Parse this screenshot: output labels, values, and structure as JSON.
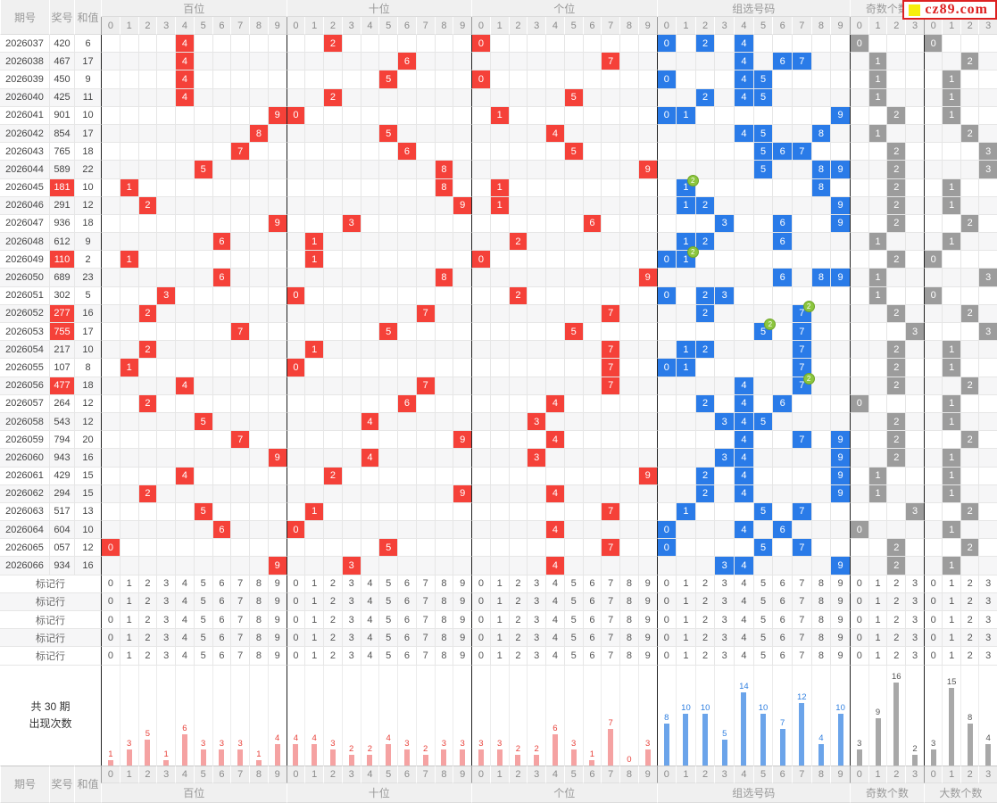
{
  "logo": {
    "text": "cz89.com",
    "accent": "#dd2121",
    "square_color": "#f7ef0c"
  },
  "badge_label": "2",
  "header": {
    "issue": "期号",
    "prize": "奖号",
    "sum": "和值",
    "sections": [
      {
        "key": "hundreds",
        "label": "百位",
        "cells": 10
      },
      {
        "key": "tens",
        "label": "十位",
        "cells": 10
      },
      {
        "key": "units",
        "label": "个位",
        "cells": 10
      },
      {
        "key": "group",
        "label": "组选号码",
        "cells": 10
      },
      {
        "key": "odd",
        "label": "奇数个数",
        "cells": 4
      },
      {
        "key": "big",
        "label": "大数个数",
        "cells": 4
      }
    ]
  },
  "colors": {
    "red_cell": "#f54139",
    "blue_cell": "#2a7be8",
    "gray_cell": "#9c9c9c",
    "bar_red": "#f5a2a2",
    "bar_red_label": "#e8423b",
    "bar_blue": "#6ba4ea",
    "bar_blue_label": "#2f7fe0",
    "bar_gray": "#a8a8a8",
    "bar_gray_label": "#555555",
    "badge_green": "#8cc63e"
  },
  "rows": [
    {
      "issue": "2026037",
      "prize": "420",
      "sum": "6",
      "special": false,
      "hundreds": 4,
      "tens": 2,
      "units": 0,
      "group": [
        0,
        2,
        4
      ],
      "double": null,
      "odd": 0,
      "big": 0
    },
    {
      "issue": "2026038",
      "prize": "467",
      "sum": "17",
      "special": false,
      "hundreds": 4,
      "tens": 6,
      "units": 7,
      "group": [
        4,
        6,
        7
      ],
      "double": null,
      "odd": 1,
      "big": 2
    },
    {
      "issue": "2026039",
      "prize": "450",
      "sum": "9",
      "special": false,
      "hundreds": 4,
      "tens": 5,
      "units": 0,
      "group": [
        0,
        4,
        5
      ],
      "double": null,
      "odd": 1,
      "big": 1
    },
    {
      "issue": "2026040",
      "prize": "425",
      "sum": "11",
      "special": false,
      "hundreds": 4,
      "tens": 2,
      "units": 5,
      "group": [
        2,
        4,
        5
      ],
      "double": null,
      "odd": 1,
      "big": 1
    },
    {
      "issue": "2026041",
      "prize": "901",
      "sum": "10",
      "special": false,
      "hundreds": 9,
      "tens": 0,
      "units": 1,
      "group": [
        0,
        1,
        9
      ],
      "double": null,
      "odd": 2,
      "big": 1
    },
    {
      "issue": "2026042",
      "prize": "854",
      "sum": "17",
      "special": false,
      "hundreds": 8,
      "tens": 5,
      "units": 4,
      "group": [
        4,
        5,
        8
      ],
      "double": null,
      "odd": 1,
      "big": 2
    },
    {
      "issue": "2026043",
      "prize": "765",
      "sum": "18",
      "special": false,
      "hundreds": 7,
      "tens": 6,
      "units": 5,
      "group": [
        5,
        6,
        7
      ],
      "double": null,
      "odd": 2,
      "big": 3
    },
    {
      "issue": "2026044",
      "prize": "589",
      "sum": "22",
      "special": false,
      "hundreds": 5,
      "tens": 8,
      "units": 9,
      "group": [
        5,
        8,
        9
      ],
      "double": null,
      "odd": 2,
      "big": 3
    },
    {
      "issue": "2026045",
      "prize": "181",
      "sum": "10",
      "special": true,
      "hundreds": 1,
      "tens": 8,
      "units": 1,
      "group": [
        1,
        8
      ],
      "double": 1,
      "odd": 2,
      "big": 1
    },
    {
      "issue": "2026046",
      "prize": "291",
      "sum": "12",
      "special": false,
      "hundreds": 2,
      "tens": 9,
      "units": 1,
      "group": [
        1,
        2,
        9
      ],
      "double": null,
      "odd": 2,
      "big": 1
    },
    {
      "issue": "2026047",
      "prize": "936",
      "sum": "18",
      "special": false,
      "hundreds": 9,
      "tens": 3,
      "units": 6,
      "group": [
        3,
        6,
        9
      ],
      "double": null,
      "odd": 2,
      "big": 2
    },
    {
      "issue": "2026048",
      "prize": "612",
      "sum": "9",
      "special": false,
      "hundreds": 6,
      "tens": 1,
      "units": 2,
      "group": [
        1,
        2,
        6
      ],
      "double": null,
      "odd": 1,
      "big": 1
    },
    {
      "issue": "2026049",
      "prize": "110",
      "sum": "2",
      "special": true,
      "hundreds": 1,
      "tens": 1,
      "units": 0,
      "group": [
        0,
        1
      ],
      "double": 1,
      "odd": 2,
      "big": 0
    },
    {
      "issue": "2026050",
      "prize": "689",
      "sum": "23",
      "special": false,
      "hundreds": 6,
      "tens": 8,
      "units": 9,
      "group": [
        6,
        8,
        9
      ],
      "double": null,
      "odd": 1,
      "big": 3
    },
    {
      "issue": "2026051",
      "prize": "302",
      "sum": "5",
      "special": false,
      "hundreds": 3,
      "tens": 0,
      "units": 2,
      "group": [
        0,
        2,
        3
      ],
      "double": null,
      "odd": 1,
      "big": 0
    },
    {
      "issue": "2026052",
      "prize": "277",
      "sum": "16",
      "special": true,
      "hundreds": 2,
      "tens": 7,
      "units": 7,
      "group": [
        2,
        7
      ],
      "double": 7,
      "odd": 2,
      "big": 2
    },
    {
      "issue": "2026053",
      "prize": "755",
      "sum": "17",
      "special": true,
      "hundreds": 7,
      "tens": 5,
      "units": 5,
      "group": [
        5,
        7
      ],
      "double": 5,
      "odd": 3,
      "big": 3
    },
    {
      "issue": "2026054",
      "prize": "217",
      "sum": "10",
      "special": false,
      "hundreds": 2,
      "tens": 1,
      "units": 7,
      "group": [
        1,
        2,
        7
      ],
      "double": null,
      "odd": 2,
      "big": 1
    },
    {
      "issue": "2026055",
      "prize": "107",
      "sum": "8",
      "special": false,
      "hundreds": 1,
      "tens": 0,
      "units": 7,
      "group": [
        0,
        1,
        7
      ],
      "double": null,
      "odd": 2,
      "big": 1
    },
    {
      "issue": "2026056",
      "prize": "477",
      "sum": "18",
      "special": true,
      "hundreds": 4,
      "tens": 7,
      "units": 7,
      "group": [
        4,
        7
      ],
      "double": 7,
      "odd": 2,
      "big": 2
    },
    {
      "issue": "2026057",
      "prize": "264",
      "sum": "12",
      "special": false,
      "hundreds": 2,
      "tens": 6,
      "units": 4,
      "group": [
        2,
        4,
        6
      ],
      "double": null,
      "odd": 0,
      "big": 1
    },
    {
      "issue": "2026058",
      "prize": "543",
      "sum": "12",
      "special": false,
      "hundreds": 5,
      "tens": 4,
      "units": 3,
      "group": [
        3,
        4,
        5
      ],
      "double": null,
      "odd": 2,
      "big": 1
    },
    {
      "issue": "2026059",
      "prize": "794",
      "sum": "20",
      "special": false,
      "hundreds": 7,
      "tens": 9,
      "units": 4,
      "group": [
        4,
        7,
        9
      ],
      "double": null,
      "odd": 2,
      "big": 2
    },
    {
      "issue": "2026060",
      "prize": "943",
      "sum": "16",
      "special": false,
      "hundreds": 9,
      "tens": 4,
      "units": 3,
      "group": [
        3,
        4,
        9
      ],
      "double": null,
      "odd": 2,
      "big": 1
    },
    {
      "issue": "2026061",
      "prize": "429",
      "sum": "15",
      "special": false,
      "hundreds": 4,
      "tens": 2,
      "units": 9,
      "group": [
        2,
        4,
        9
      ],
      "double": null,
      "odd": 1,
      "big": 1
    },
    {
      "issue": "2026062",
      "prize": "294",
      "sum": "15",
      "special": false,
      "hundreds": 2,
      "tens": 9,
      "units": 4,
      "group": [
        2,
        4,
        9
      ],
      "double": null,
      "odd": 1,
      "big": 1
    },
    {
      "issue": "2026063",
      "prize": "517",
      "sum": "13",
      "special": false,
      "hundreds": 5,
      "tens": 1,
      "units": 7,
      "group": [
        1,
        5,
        7
      ],
      "double": null,
      "odd": 3,
      "big": 2
    },
    {
      "issue": "2026064",
      "prize": "604",
      "sum": "10",
      "special": false,
      "hundreds": 6,
      "tens": 0,
      "units": 4,
      "group": [
        0,
        4,
        6
      ],
      "double": null,
      "odd": 0,
      "big": 1
    },
    {
      "issue": "2026065",
      "prize": "057",
      "sum": "12",
      "special": false,
      "hundreds": 0,
      "tens": 5,
      "units": 7,
      "group": [
        0,
        5,
        7
      ],
      "double": null,
      "odd": 2,
      "big": 2
    },
    {
      "issue": "2026066",
      "prize": "934",
      "sum": "16",
      "special": false,
      "hundreds": 9,
      "tens": 3,
      "units": 4,
      "group": [
        3,
        4,
        9
      ],
      "double": null,
      "odd": 2,
      "big": 1
    }
  ],
  "mark": {
    "label": "标记行",
    "count": 5
  },
  "stats": {
    "label_line1": "共 30 期",
    "label_line2": "出现次数",
    "hundreds": [
      1,
      3,
      5,
      1,
      6,
      3,
      3,
      3,
      1,
      4
    ],
    "tens": [
      4,
      4,
      3,
      2,
      2,
      4,
      3,
      2,
      3,
      3
    ],
    "units": [
      3,
      3,
      2,
      2,
      6,
      3,
      1,
      7,
      0,
      3
    ],
    "group": [
      8,
      10,
      10,
      5,
      14,
      10,
      7,
      12,
      4,
      10
    ],
    "odd": [
      3,
      9,
      16,
      2
    ],
    "big": [
      3,
      15,
      8,
      4
    ]
  },
  "chart_data": {
    "type": "bar",
    "title": "共30期 出现次数",
    "legend_position": "none",
    "grid": true,
    "ylim": [
      0,
      16
    ],
    "series": [
      {
        "name": "百位",
        "categories": [
          0,
          1,
          2,
          3,
          4,
          5,
          6,
          7,
          8,
          9
        ],
        "values": [
          1,
          3,
          5,
          1,
          6,
          3,
          3,
          3,
          1,
          4
        ]
      },
      {
        "name": "十位",
        "categories": [
          0,
          1,
          2,
          3,
          4,
          5,
          6,
          7,
          8,
          9
        ],
        "values": [
          4,
          4,
          3,
          2,
          2,
          4,
          3,
          2,
          3,
          3
        ]
      },
      {
        "name": "个位",
        "categories": [
          0,
          1,
          2,
          3,
          4,
          5,
          6,
          7,
          8,
          9
        ],
        "values": [
          3,
          3,
          2,
          2,
          6,
          3,
          1,
          7,
          0,
          3
        ]
      },
      {
        "name": "组选号码",
        "categories": [
          0,
          1,
          2,
          3,
          4,
          5,
          6,
          7,
          8,
          9
        ],
        "values": [
          8,
          10,
          10,
          5,
          14,
          10,
          7,
          12,
          4,
          10
        ]
      },
      {
        "name": "奇数个数",
        "categories": [
          0,
          1,
          2,
          3
        ],
        "values": [
          3,
          9,
          16,
          2
        ]
      },
      {
        "name": "大数个数",
        "categories": [
          0,
          1,
          2,
          3
        ],
        "values": [
          3,
          15,
          8,
          4
        ]
      }
    ]
  }
}
